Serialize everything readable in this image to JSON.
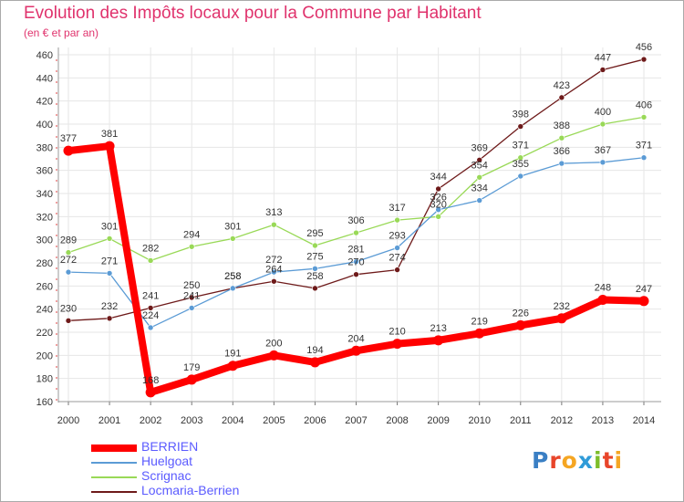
{
  "chart_data": {
    "type": "line",
    "title": "Evolution des Impôts locaux pour la Commune par Habitant",
    "subtitle": "(en € et par an)",
    "xlabel": "",
    "ylabel": "",
    "x": [
      "2000",
      "2001",
      "2002",
      "2003",
      "2004",
      "2005",
      "2006",
      "2007",
      "2008",
      "2009",
      "2010",
      "2011",
      "2012",
      "2013",
      "2014"
    ],
    "ylim": [
      160,
      460
    ],
    "yticks": [
      160,
      180,
      200,
      220,
      240,
      260,
      280,
      300,
      320,
      340,
      360,
      380,
      400,
      420,
      440,
      460
    ],
    "grid": true,
    "legend_position": "bottom-left",
    "series": [
      {
        "name": "BERRIEN",
        "color": "#ff0000",
        "values": [
          377,
          381,
          168,
          179,
          191,
          200,
          194,
          204,
          210,
          213,
          219,
          226,
          232,
          248,
          247
        ]
      },
      {
        "name": "Huelgoat",
        "color": "#5b9bd5",
        "values": [
          272,
          271,
          224,
          241,
          258,
          272,
          275,
          281,
          293,
          326,
          334,
          355,
          366,
          367,
          371
        ]
      },
      {
        "name": "Scrignac",
        "color": "#99d957",
        "values": [
          289,
          301,
          282,
          294,
          301,
          313,
          295,
          306,
          317,
          320,
          354,
          371,
          388,
          400,
          406
        ]
      },
      {
        "name": "Locmaria-Berrien",
        "color": "#6e1a1a",
        "values": [
          230,
          232,
          241,
          250,
          258,
          264,
          258,
          270,
          274,
          344,
          369,
          398,
          423,
          447,
          456
        ]
      }
    ]
  },
  "brand": {
    "letters": [
      "P",
      "r",
      "o",
      "x",
      "i",
      "t",
      "i"
    ],
    "colors": [
      "#3a7fc4",
      "#e8452a",
      "#f5a623",
      "#2f9bd8",
      "#7dbd2b",
      "#e8452a",
      "#f5a623"
    ]
  }
}
